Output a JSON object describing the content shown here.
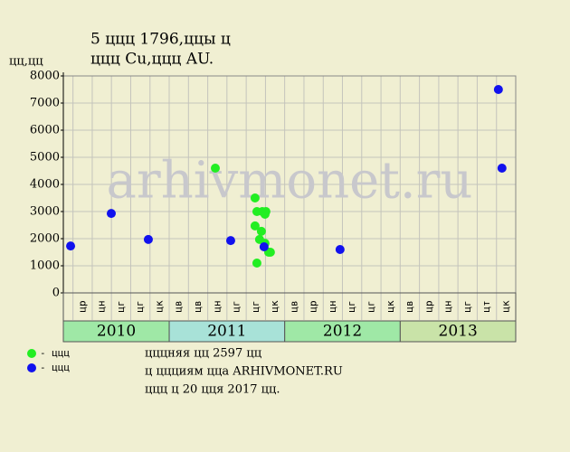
{
  "chart_data": {
    "type": "scatter",
    "title": "5 ццц 1796,ццы ц",
    "subtitle": "ццц Cu,ццц AU.",
    "y_label": "цц,цц",
    "watermark": "arhivmonet.ru",
    "footer": [
      "цццняя цц 2597 цц",
      "ц ццциям ццa ARHIVMONET.RU",
      "ццц ц 20 цця 2017 цц."
    ],
    "xlim": [
      2010.083,
      2014
    ],
    "ylim": [
      0,
      8000
    ],
    "yticks": [
      0,
      1000,
      2000,
      3000,
      4000,
      5000,
      6000,
      7000,
      8000
    ],
    "xticks": [
      {
        "value": 2010.25,
        "label": "цр"
      },
      {
        "value": 2010.417,
        "label": "цн"
      },
      {
        "value": 2010.583,
        "label": "цг"
      },
      {
        "value": 2010.75,
        "label": "цг"
      },
      {
        "value": 2010.917,
        "label": "цк"
      },
      {
        "value": 2011.083,
        "label": "цв"
      },
      {
        "value": 2011.25,
        "label": "цв"
      },
      {
        "value": 2011.417,
        "label": "цн"
      },
      {
        "value": 2011.583,
        "label": "цг"
      },
      {
        "value": 2011.75,
        "label": "цг"
      },
      {
        "value": 2011.917,
        "label": "цк"
      },
      {
        "value": 2012.083,
        "label": "цв"
      },
      {
        "value": 2012.25,
        "label": "цр"
      },
      {
        "value": 2012.417,
        "label": "цн"
      },
      {
        "value": 2012.583,
        "label": "цг"
      },
      {
        "value": 2012.75,
        "label": "цг"
      },
      {
        "value": 2012.917,
        "label": "цк"
      },
      {
        "value": 2013.083,
        "label": "цв"
      },
      {
        "value": 2013.25,
        "label": "цр"
      },
      {
        "value": 2013.417,
        "label": "цн"
      },
      {
        "value": 2013.583,
        "label": "цг"
      },
      {
        "value": 2013.75,
        "label": "цт"
      },
      {
        "value": 2013.917,
        "label": "цк"
      }
    ],
    "year_ticks": [
      {
        "value": 2010,
        "label": "2010",
        "color": "#9fe8a6"
      },
      {
        "value": 2011,
        "label": "2011",
        "color": "#a8e2d8"
      },
      {
        "value": 2012,
        "label": "2012",
        "color": "#9fe8a6"
      },
      {
        "value": 2013,
        "label": "2013",
        "color": "#c9e3a8"
      }
    ],
    "grid": true,
    "series": [
      {
        "name": "- ццц",
        "color": "#22ee22",
        "x": [
          2011.399,
          2011.743,
          2011.759,
          2011.806,
          2011.837,
          2011.829,
          2011.743,
          2011.798,
          2011.782,
          2011.829,
          2011.861,
          2011.876,
          2011.759
        ],
        "values": [
          4600,
          3500,
          3000,
          3000,
          3000,
          2900,
          2470,
          2270,
          1970,
          1830,
          1500,
          1500,
          1100
        ]
      },
      {
        "name": "- ццц",
        "color": "#1111ee",
        "x": [
          2010.146,
          2010.498,
          2010.819,
          2011.532,
          2011.821,
          2012.479,
          2013.85,
          2013.881
        ],
        "values": [
          1730,
          2930,
          1970,
          1930,
          1700,
          1600,
          7500,
          4600
        ]
      }
    ]
  }
}
